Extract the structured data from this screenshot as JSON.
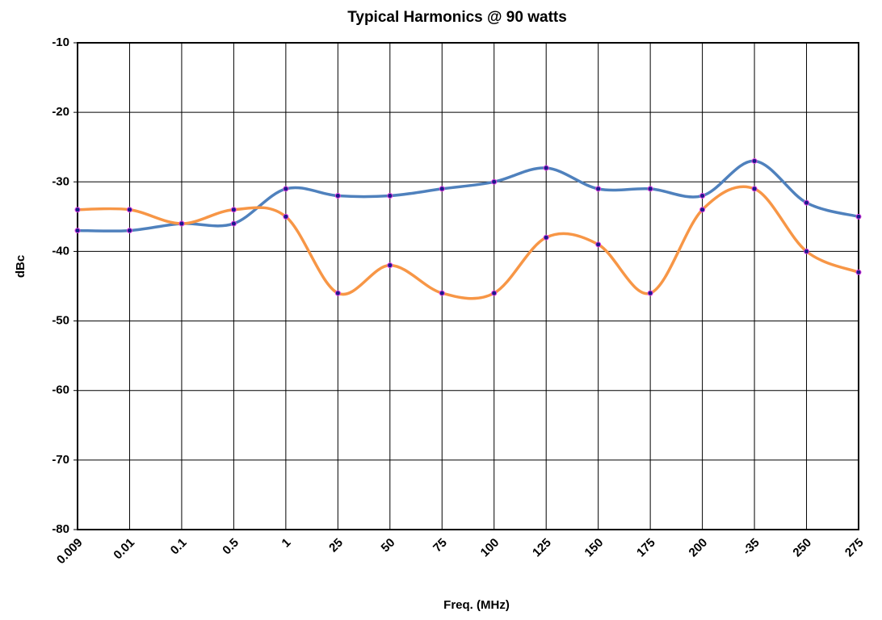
{
  "chart_data": {
    "type": "line",
    "title": "Typical Harmonics @ 90 watts",
    "x_label": "Freq. (MHz)",
    "y_label": "dBc",
    "categories": [
      "0.009",
      "0.01",
      "0.1",
      "0.5",
      "1",
      "25",
      "50",
      "75",
      "100",
      "125",
      "150",
      "175",
      "200",
      "-35",
      "250",
      "275"
    ],
    "series": [
      {
        "color": "#4f81bd",
        "values": [
          -37,
          -37,
          -36,
          -36,
          -31,
          -32,
          -32,
          -31,
          -30,
          -28,
          -31,
          -31,
          -32,
          -27,
          -33,
          -35
        ]
      },
      {
        "color": "#f79646",
        "values": [
          -34,
          -34,
          -36,
          -34,
          -35,
          -46,
          -42,
          -46,
          -46,
          -38,
          -39,
          -46,
          -34,
          -31,
          -40,
          -43
        ]
      }
    ],
    "ylim": [
      -80,
      -10
    ],
    "yticks": [
      -80,
      -70,
      -60,
      -50,
      -40,
      -30,
      -20,
      -10
    ],
    "grid": true
  }
}
